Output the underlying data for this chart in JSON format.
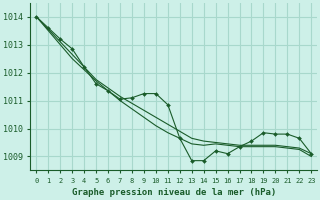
{
  "title": "Graphe pression niveau de la mer (hPa)",
  "background_color": "#cdf0e8",
  "grid_color": "#a8d8cc",
  "line_color": "#1a5c2a",
  "x_values": [
    0,
    1,
    2,
    3,
    4,
    5,
    6,
    7,
    8,
    9,
    10,
    11,
    12,
    13,
    14,
    15,
    16,
    17,
    18,
    19,
    20,
    21,
    22,
    23
  ],
  "series_main": [
    1014.0,
    1013.6,
    1013.2,
    1012.85,
    1012.2,
    1011.6,
    1011.35,
    1011.05,
    1011.1,
    1011.25,
    1011.25,
    1010.85,
    1009.65,
    1008.85,
    1008.85,
    1009.2,
    1009.1,
    1009.35,
    1009.55,
    1009.85,
    1009.8,
    1009.8,
    1009.65,
    1009.1
  ],
  "series_line2": [
    1014.0,
    1013.55,
    1013.1,
    1012.65,
    1012.2,
    1011.75,
    1011.45,
    1011.15,
    1010.9,
    1010.65,
    1010.4,
    1010.15,
    1009.9,
    1009.65,
    1009.55,
    1009.5,
    1009.45,
    1009.4,
    1009.4,
    1009.4,
    1009.4,
    1009.35,
    1009.3,
    1009.1
  ],
  "series_line3": [
    1014.0,
    1013.5,
    1013.0,
    1012.5,
    1012.1,
    1011.7,
    1011.35,
    1011.0,
    1010.7,
    1010.4,
    1010.1,
    1009.85,
    1009.65,
    1009.45,
    1009.4,
    1009.45,
    1009.4,
    1009.35,
    1009.35,
    1009.35,
    1009.35,
    1009.3,
    1009.25,
    1009.0
  ],
  "ylim": [
    1008.5,
    1014.5
  ],
  "yticks": [
    1009,
    1010,
    1011,
    1012,
    1013,
    1014
  ],
  "xlim": [
    -0.5,
    23.5
  ],
  "xticks": [
    0,
    1,
    2,
    3,
    4,
    5,
    6,
    7,
    8,
    9,
    10,
    11,
    12,
    13,
    14,
    15,
    16,
    17,
    18,
    19,
    20,
    21,
    22,
    23
  ]
}
